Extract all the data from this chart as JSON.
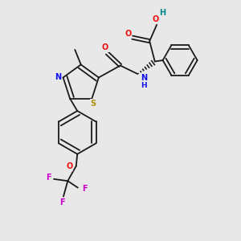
{
  "bg": "#e8e8e8",
  "C": "#1a1a1a",
  "N": "#1010ee",
  "O": "#ee1010",
  "S": "#b0900a",
  "F": "#cc00cc",
  "Ht": "#008888",
  "lw": 1.3,
  "fs": 7.0,
  "xlim": [
    0,
    10
  ],
  "ylim": [
    0,
    10
  ]
}
